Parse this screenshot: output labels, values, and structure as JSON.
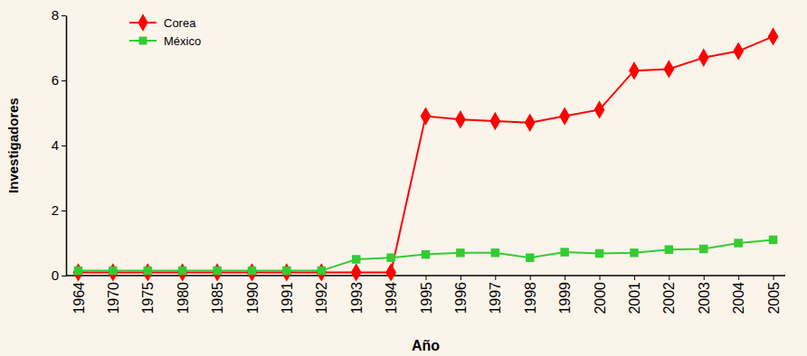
{
  "chart_data": {
    "type": "line",
    "x_label": "Año",
    "y_label": "Investigadores",
    "categories": [
      "1964",
      "1970",
      "1975",
      "1980",
      "1985",
      "1990",
      "1991",
      "1992",
      "1993",
      "1994",
      "1995",
      "1996",
      "1997",
      "1998",
      "1999",
      "2000",
      "2001",
      "2002",
      "2003",
      "2004",
      "2005"
    ],
    "series": [
      {
        "name": "Corea",
        "color": "#ff0000",
        "marker": "diamond",
        "line_style": "solid",
        "values": [
          0.1,
          0.1,
          0.1,
          0.1,
          0.1,
          0.1,
          0.1,
          0.1,
          0.1,
          0.1,
          4.9,
          4.8,
          4.75,
          4.7,
          4.9,
          5.1,
          6.3,
          6.35,
          6.7,
          6.9,
          7.35
        ]
      },
      {
        "name": "México",
        "color": "#33cc33",
        "marker": "square",
        "line_style": "solid",
        "values": [
          0.15,
          0.15,
          0.15,
          0.15,
          0.15,
          0.15,
          0.15,
          0.15,
          0.5,
          0.55,
          0.65,
          0.7,
          0.7,
          0.55,
          0.72,
          0.68,
          0.7,
          0.8,
          0.82,
          1.0,
          1.1
        ]
      }
    ],
    "ylim": [
      0,
      8
    ],
    "yticks": [
      0,
      2,
      4,
      6,
      8
    ],
    "grid": false,
    "legend": "top-left"
  }
}
